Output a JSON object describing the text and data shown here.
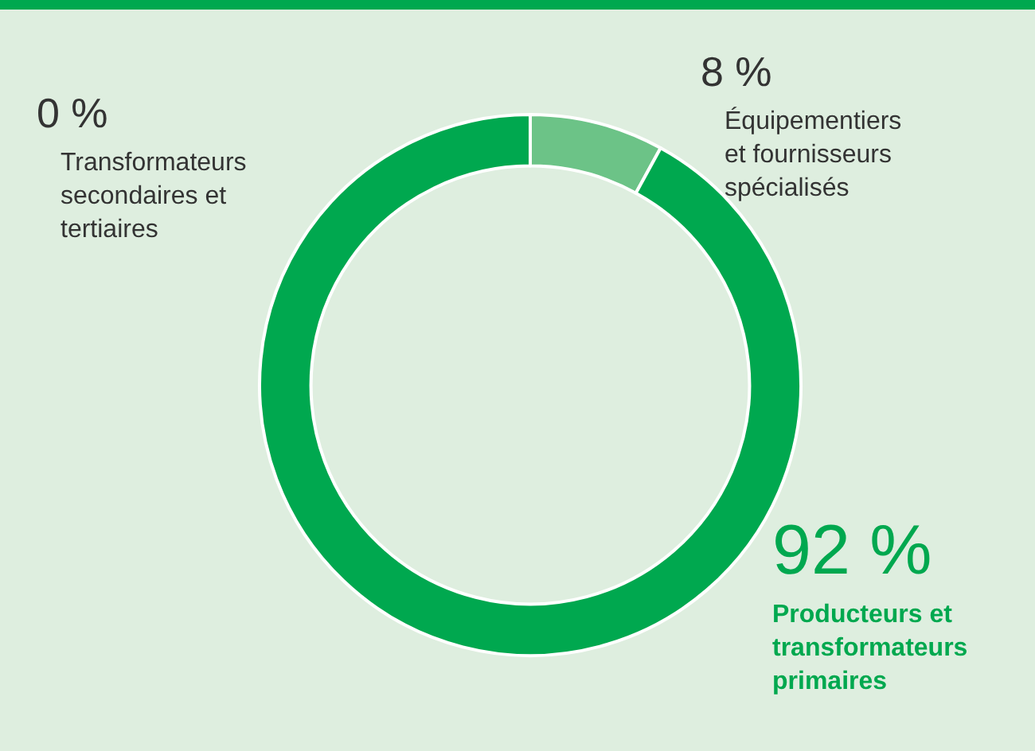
{
  "chart_data": {
    "type": "donut",
    "categories": [
      "Équipementiers et fournisseurs spécialisés",
      "Producteurs et transformateurs primaires",
      "Transformateurs secondaires et tertiaires"
    ],
    "values": [
      8,
      92,
      0
    ],
    "colors": [
      "#6cc387",
      "#00a84f",
      "#00a84f"
    ],
    "value_labels": [
      "8 %",
      "92 %",
      "0 %"
    ],
    "legend": false
  }
}
